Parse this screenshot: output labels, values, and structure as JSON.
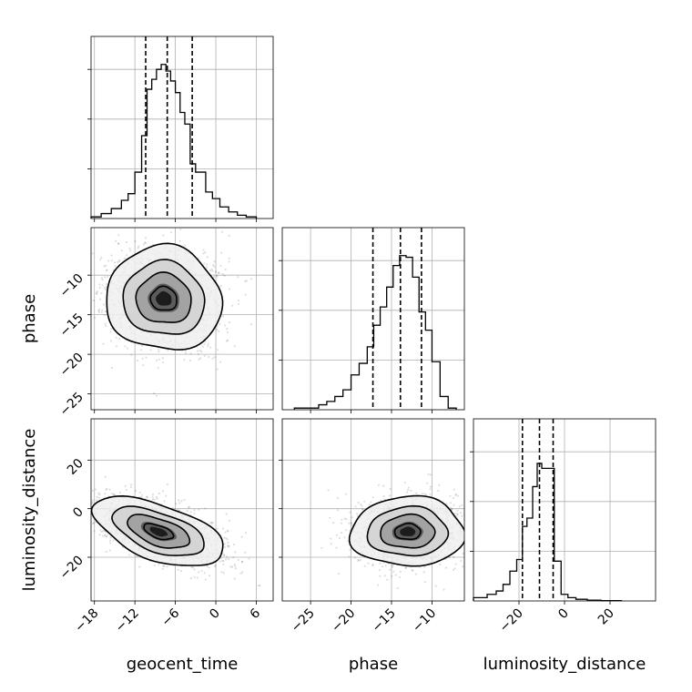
{
  "chart_data": {
    "type": "corner",
    "variables": [
      "geocent_time",
      "phase",
      "luminosity_distance"
    ],
    "grid": true,
    "quantiles_shown": [
      0.16,
      0.5,
      0.84
    ],
    "marginals": [
      {
        "variable": "geocent_time",
        "xlim": [
          -18.5,
          8.5
        ],
        "xticks": [
          -18,
          -12,
          -6,
          0,
          6
        ],
        "xtick_labels": [
          "−18",
          "−12",
          "−6",
          "0",
          "6"
        ],
        "quantiles": [
          -10.4,
          -7.2,
          -3.5
        ],
        "bin_edges": [
          -18.5,
          -17.0,
          -15.5,
          -14.0,
          -13.0,
          -12.0,
          -11.0,
          -10.2,
          -9.5,
          -8.8,
          -8.1,
          -7.4,
          -6.7,
          -6.0,
          -5.3,
          -4.6,
          -3.8,
          -3.0,
          -1.5,
          -0.5,
          0.6,
          1.9,
          3.2,
          4.5,
          6.0
        ],
        "heights": [
          0.01,
          0.03,
          0.06,
          0.11,
          0.15,
          0.28,
          0.5,
          0.78,
          0.84,
          0.9,
          0.93,
          0.89,
          0.83,
          0.76,
          0.64,
          0.57,
          0.33,
          0.28,
          0.16,
          0.12,
          0.07,
          0.04,
          0.02,
          0.01
        ],
        "ymax": 1.0
      },
      {
        "variable": "phase",
        "xlim": [
          -28.5,
          -6.0
        ],
        "xticks": [
          -25,
          -20,
          -15,
          -10
        ],
        "xtick_labels": [
          "−25",
          "−20",
          "−15",
          "−10"
        ],
        "quantiles": [
          -17.3,
          -13.9,
          -11.3
        ],
        "bin_edges": [
          -27.0,
          -24.0,
          -23.0,
          -22.0,
          -21.0,
          -20.0,
          -19.0,
          -18.0,
          -17.2,
          -16.4,
          -15.6,
          -14.8,
          -14.0,
          -13.2,
          -12.4,
          -11.6,
          -10.8,
          -10.0,
          -9.0,
          -8.0,
          -7.0
        ],
        "heights": [
          0.01,
          0.03,
          0.05,
          0.08,
          0.12,
          0.21,
          0.28,
          0.38,
          0.51,
          0.62,
          0.74,
          0.87,
          0.93,
          0.92,
          0.8,
          0.59,
          0.48,
          0.29,
          0.08,
          0.01
        ],
        "ymax": 1.0
      },
      {
        "variable": "luminosity_distance",
        "xlim": [
          -40.0,
          40.0
        ],
        "xticks": [
          -20,
          0,
          20
        ],
        "xtick_labels": [
          "−20",
          "0",
          "20"
        ],
        "quantiles": [
          -18.5,
          -11.0,
          -5.0
        ],
        "bin_edges": [
          -40.0,
          -34.0,
          -30.0,
          -27.0,
          -24.0,
          -21.0,
          -18.5,
          -16.5,
          -14.0,
          -12.0,
          -10.0,
          -7.5,
          -4.5,
          -1.5,
          1.5,
          5.0,
          10.0,
          16.0,
          25.0
        ],
        "heights": [
          0.02,
          0.04,
          0.06,
          0.1,
          0.18,
          0.25,
          0.45,
          0.5,
          0.69,
          0.83,
          0.8,
          0.8,
          0.24,
          0.04,
          0.02,
          0.01,
          0.005,
          0.002
        ],
        "ymax": 1.0
      }
    ],
    "joints": [
      {
        "x": "geocent_time",
        "y": "phase",
        "xlim": [
          -18.5,
          8.5
        ],
        "ylim": [
          -27.0,
          -4.0
        ],
        "yticks": [
          -25,
          -20,
          -15,
          -10
        ],
        "ytick_labels": [
          "−25",
          "−20",
          "−15",
          "−10"
        ],
        "center": [
          -7.7,
          -13.0
        ],
        "spread": [
          3.9,
          3.0
        ],
        "correlation": -0.05
      },
      {
        "x": "geocent_time",
        "y": "luminosity_distance",
        "xlim": [
          -18.5,
          8.5
        ],
        "ylim": [
          -38.0,
          37.0
        ],
        "yticks": [
          -20,
          0,
          20
        ],
        "ytick_labels": [
          "−20",
          "0",
          "20"
        ],
        "center": [
          -8.5,
          -9.5
        ],
        "spread": [
          4.4,
          6.5
        ],
        "correlation": -0.55
      },
      {
        "x": "phase",
        "y": "luminosity_distance",
        "xlim": [
          -28.5,
          -6.0
        ],
        "ylim": [
          -38.0,
          37.0
        ],
        "center": [
          -13.0,
          -9.5
        ],
        "spread": [
          3.2,
          6.5
        ],
        "correlation": 0.02
      }
    ]
  }
}
